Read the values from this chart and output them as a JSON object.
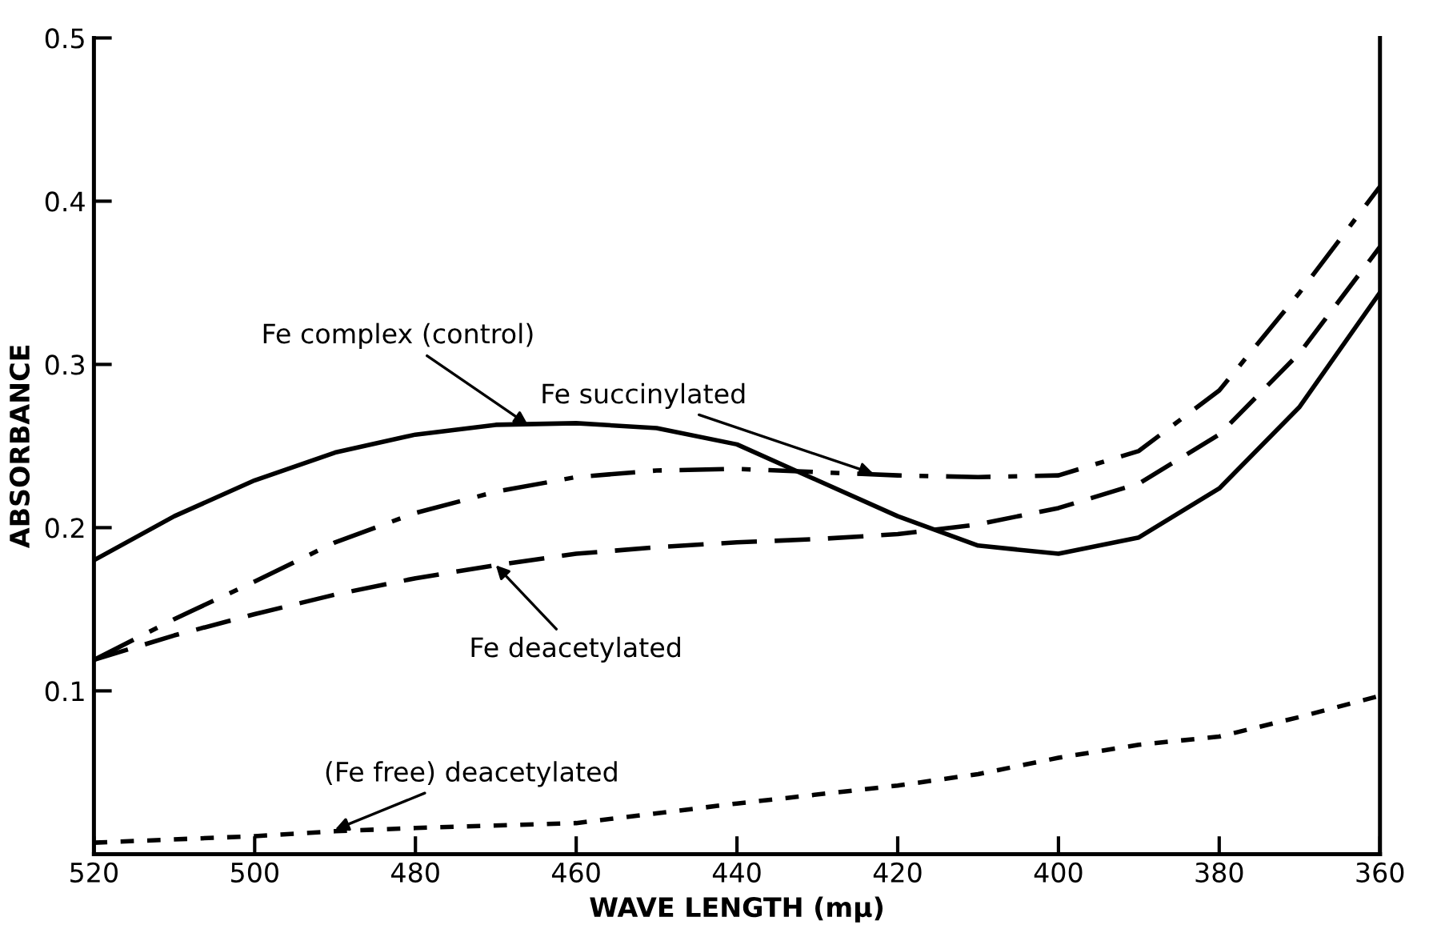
{
  "chart_data": {
    "type": "line",
    "xlabel": "WAVE LENGTH (mμ)",
    "ylabel": "ABSORBANCE",
    "xlim": [
      520,
      360
    ],
    "ylim": [
      0,
      0.5
    ],
    "xticks": [
      520,
      500,
      480,
      460,
      440,
      420,
      400,
      380,
      360
    ],
    "yticks": [
      0.1,
      0.2,
      0.3,
      0.4,
      0.5
    ],
    "grid": false,
    "legend": false,
    "marker": "none",
    "series": [
      {
        "color": "#000000",
        "line_style": "solid",
        "x": [
          520,
          510,
          500,
          490,
          480,
          470,
          460,
          450,
          440,
          430,
          420,
          410,
          400,
          390,
          380,
          370,
          360
        ],
        "values": [
          0.18,
          0.207,
          0.229,
          0.246,
          0.257,
          0.263,
          0.264,
          0.261,
          0.251,
          0.229,
          0.207,
          0.189,
          0.184,
          0.194,
          0.224,
          0.274,
          0.344
        ]
      },
      {
        "color": "#000000",
        "line_style": "dashdot",
        "x": [
          520,
          510,
          500,
          490,
          480,
          470,
          460,
          450,
          440,
          430,
          420,
          410,
          400,
          390,
          380,
          370,
          360
        ],
        "values": [
          0.119,
          0.144,
          0.167,
          0.191,
          0.209,
          0.222,
          0.231,
          0.235,
          0.236,
          0.234,
          0.232,
          0.231,
          0.232,
          0.247,
          0.284,
          0.344,
          0.409
        ]
      },
      {
        "color": "#000000",
        "line_style": "dashed",
        "x": [
          520,
          510,
          500,
          490,
          480,
          470,
          460,
          450,
          440,
          430,
          420,
          410,
          400,
          390,
          380,
          370,
          360
        ],
        "values": [
          0.119,
          0.134,
          0.147,
          0.159,
          0.169,
          0.177,
          0.184,
          0.188,
          0.191,
          0.193,
          0.196,
          0.202,
          0.212,
          0.227,
          0.257,
          0.307,
          0.372
        ]
      },
      {
        "color": "#000000",
        "line_style": "dotted",
        "x": [
          520,
          500,
          490,
          480,
          460,
          440,
          420,
          410,
          400,
          390,
          380,
          370,
          360
        ],
        "values": [
          0.007,
          0.011,
          0.014,
          0.016,
          0.019,
          0.031,
          0.042,
          0.049,
          0.059,
          0.067,
          0.072,
          0.084,
          0.097
        ]
      }
    ],
    "annotations": [
      {
        "text": "Fe complex (control)",
        "x": 466,
        "y": 0.263
      },
      {
        "text": "Fe succinylated",
        "x": 423,
        "y": 0.233
      },
      {
        "text": "Fe deacetylated",
        "x": 470,
        "y": 0.177
      },
      {
        "text": "(Fe free) deacetylated",
        "x": 490,
        "y": 0.015
      }
    ]
  }
}
